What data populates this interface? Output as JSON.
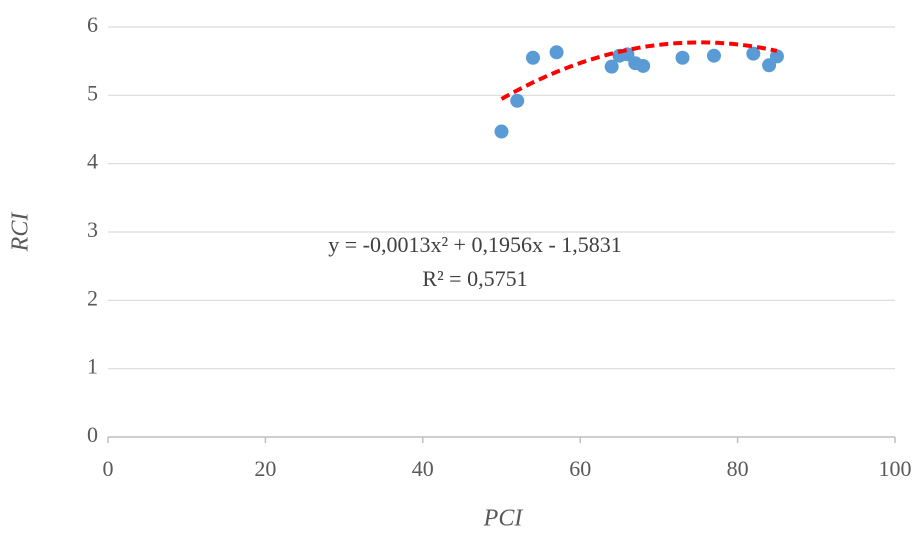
{
  "chart_data": {
    "type": "scatter",
    "x_label": "PCI",
    "y_label": "RCI",
    "x": [
      50,
      52,
      54,
      57,
      64,
      65,
      66,
      67,
      68,
      73,
      77,
      82,
      84,
      85
    ],
    "series": [
      {
        "color": "#5b9bd5",
        "values": [
          4.47,
          4.92,
          5.55,
          5.63,
          5.42,
          5.58,
          5.6,
          5.47,
          5.43,
          5.55,
          5.58,
          5.61,
          5.44,
          5.57
        ]
      }
    ],
    "xlim": [
      0,
      100
    ],
    "xticks": [
      0,
      20,
      40,
      60,
      80,
      100
    ],
    "ylim": [
      0,
      6
    ],
    "yticks": [
      0,
      1,
      2,
      3,
      4,
      5,
      6
    ],
    "grid": true,
    "trendline": {
      "coefficients": [
        -0.0013,
        0.1956,
        -1.5831
      ],
      "x_range": [
        50,
        85
      ],
      "color": "#ff0000",
      "equation": "y = -0,0013x² + 0,1956x - 1,5831",
      "r_squared": "R² = 0,5751"
    }
  }
}
